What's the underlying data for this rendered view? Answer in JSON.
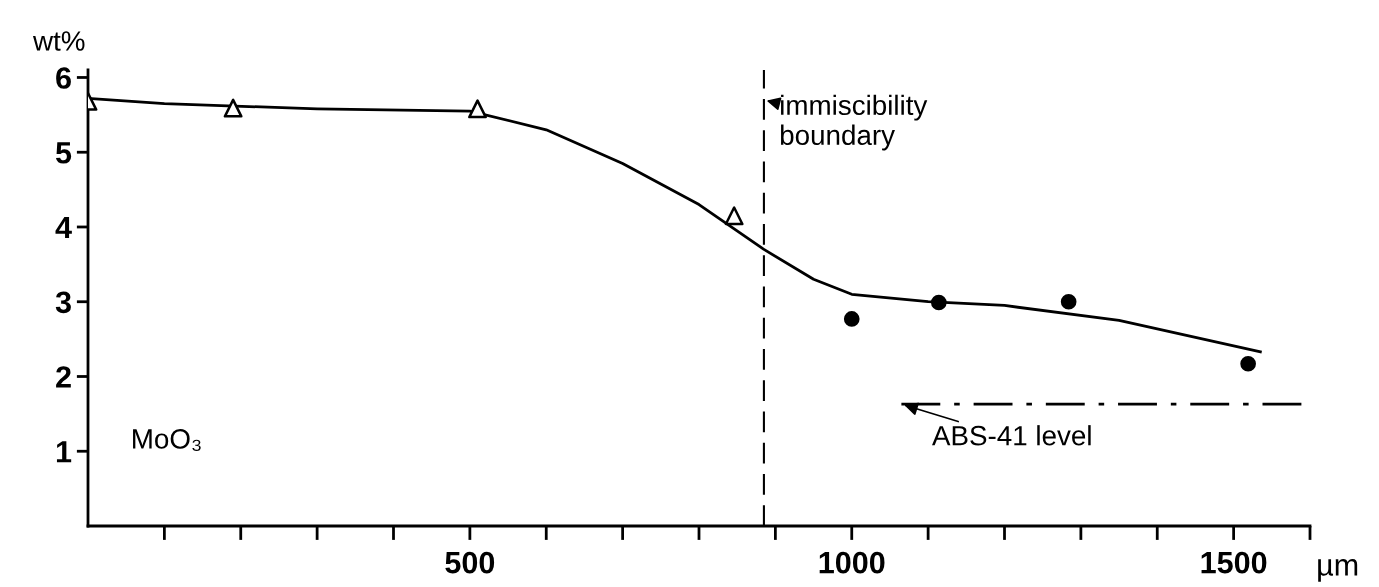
{
  "chart_data": {
    "type": "line",
    "xlabel": "µm",
    "ylabel": "wt%",
    "xlim": [
      0,
      1600
    ],
    "ylim": [
      0,
      6.1
    ],
    "xticks": [
      {
        "value": 100,
        "label": null
      },
      {
        "value": 200,
        "label": null
      },
      {
        "value": 300,
        "label": null
      },
      {
        "value": 400,
        "label": null
      },
      500,
      {
        "value": 600,
        "label": null
      },
      {
        "value": 700,
        "label": null
      },
      {
        "value": 800,
        "label": null
      },
      {
        "value": 900,
        "label": null
      },
      1000,
      {
        "value": 1100,
        "label": null
      },
      {
        "value": 1200,
        "label": null
      },
      {
        "value": 1300,
        "label": null
      },
      {
        "value": 1400,
        "label": null
      },
      1500,
      {
        "value": 1600,
        "label": null
      }
    ],
    "yticks": [
      1,
      2,
      3,
      4,
      5,
      6
    ],
    "grid": false,
    "legend": false,
    "series": [
      {
        "color": "#000000",
        "marker": "none",
        "line_style": "solid",
        "x": [
          0,
          100,
          300,
          500,
          600,
          700,
          800,
          885,
          950,
          1000,
          1100,
          1200,
          1350,
          1535
        ],
        "values": [
          5.72,
          5.65,
          5.58,
          5.55,
          5.3,
          4.85,
          4.3,
          3.7,
          3.3,
          3.1,
          3.0,
          2.95,
          2.75,
          2.33
        ]
      },
      {
        "type": "scatter",
        "color": "#000000",
        "marker": "triangle",
        "x": [
          0,
          190,
          510,
          846
        ],
        "values": [
          5.68,
          5.59,
          5.58,
          4.15
        ]
      },
      {
        "type": "scatter",
        "color": "#000000",
        "marker": "circle",
        "x": [
          1000,
          1114,
          1284,
          1519
        ],
        "values": [
          2.77,
          2.99,
          3.0,
          2.17
        ]
      },
      {
        "type": "line",
        "color": "#000000",
        "marker": "none",
        "line_style": "dashdot",
        "x": [
          1065,
          1600
        ],
        "values": [
          1.63,
          1.63
        ]
      }
    ],
    "ref_lines": [
      {
        "axis": "x",
        "value": 885,
        "label": "immiscibility\nboundary",
        "line_style": "dashed",
        "color": "#000000"
      }
    ],
    "annotations": [
      "MoO₃",
      {
        "text": "ABS-41 level",
        "x": 1065,
        "y": 1.63
      }
    ]
  }
}
